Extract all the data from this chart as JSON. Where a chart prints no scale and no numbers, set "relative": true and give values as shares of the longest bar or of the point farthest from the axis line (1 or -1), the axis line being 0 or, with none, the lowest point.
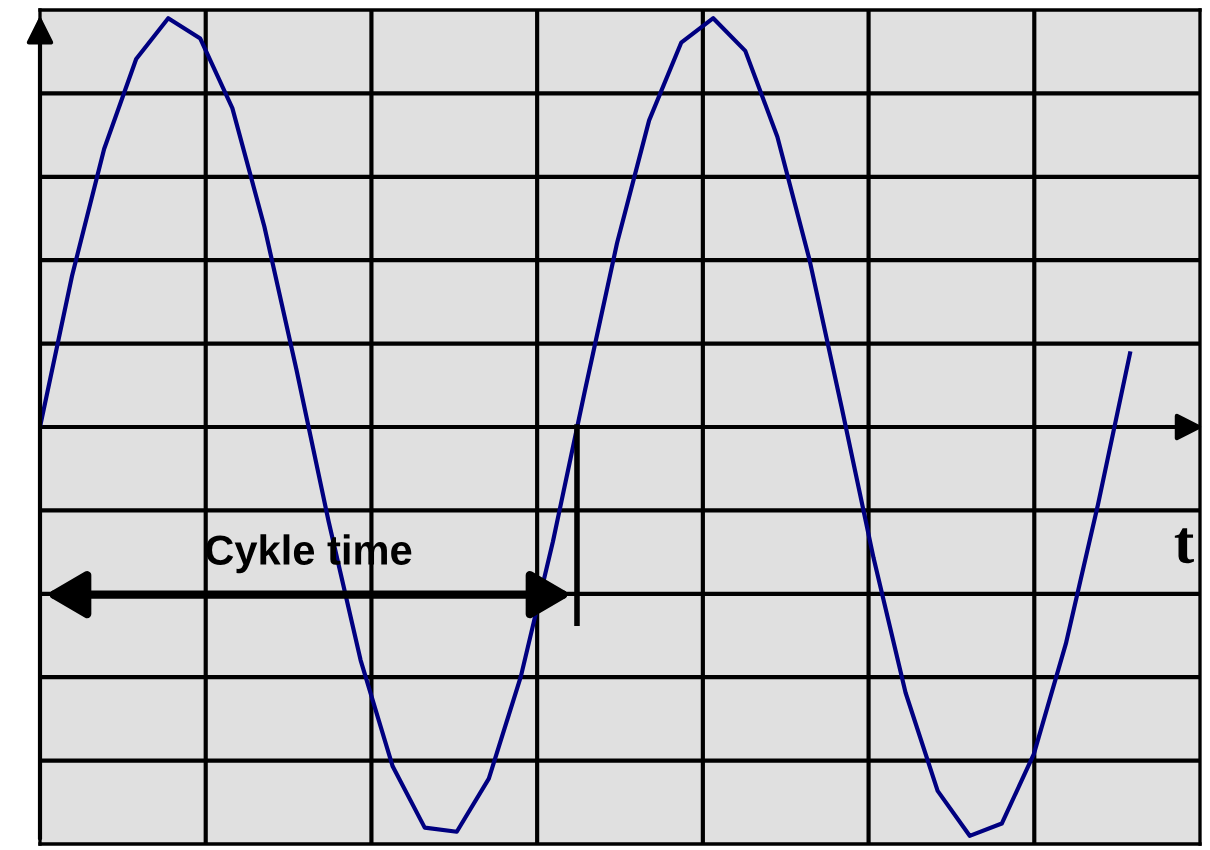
{
  "chart_data": {
    "type": "line",
    "relative": true,
    "xlabel": "t",
    "annotations": [
      "Cykle time"
    ],
    "grid": true,
    "marker": "none",
    "line_style": "solid",
    "categories": [
      null,
      null,
      null,
      null,
      null,
      null,
      null,
      null,
      null,
      null,
      null,
      null,
      null,
      null,
      null,
      null,
      null,
      null,
      null,
      null,
      null,
      null,
      null,
      null,
      null,
      null,
      null,
      null,
      null,
      null,
      null,
      null,
      null,
      null,
      null
    ],
    "series": [
      {
        "color": "#000080",
        "values": [
          0,
          0.37,
          0.68,
          0.9,
          1.0,
          0.95,
          0.78,
          0.49,
          0.14,
          -0.23,
          -0.57,
          -0.83,
          -0.98,
          -0.99,
          -0.86,
          -0.61,
          -0.28,
          0.09,
          0.45,
          0.75,
          0.94,
          1.0,
          0.92,
          0.71,
          0.41,
          0.05,
          -0.32,
          -0.65,
          -0.89,
          -1.0,
          -0.97,
          -0.8,
          -0.53,
          -0.19,
          0.18
        ]
      }
    ]
  }
}
